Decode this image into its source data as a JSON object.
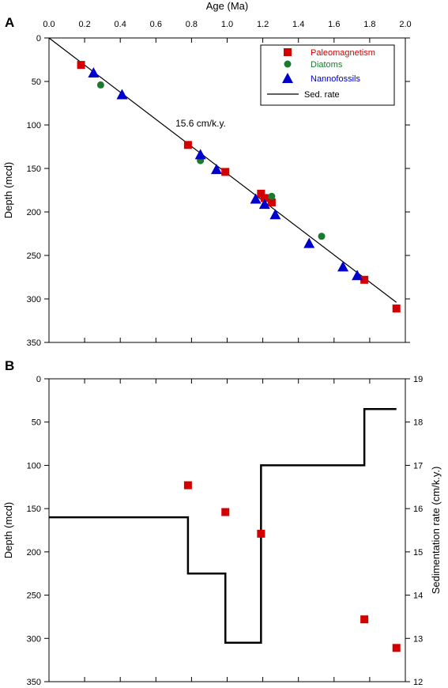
{
  "chart_data": [
    {
      "panel": "A",
      "type": "scatter",
      "title": "",
      "xlabel": "Age (Ma)",
      "ylabel": "Depth (mcd)",
      "xlim": [
        0.0,
        2.0
      ],
      "ylim": [
        350,
        0
      ],
      "x_axis_position": "top",
      "y_inverted": true,
      "xticks": [
        "0.0",
        "0.2",
        "0.4",
        "0.6",
        "0.8",
        "1.0",
        "1.2",
        "1.4",
        "1.6",
        "1.8",
        "2.0"
      ],
      "yticks": [
        "0",
        "50",
        "100",
        "150",
        "200",
        "250",
        "300",
        "350"
      ],
      "grid": false,
      "legend_position": "top-right",
      "legend": [
        "Paleomagnetism",
        "Diatoms",
        "Nannofossils",
        "Sed. rate"
      ],
      "series": [
        {
          "name": "Paleomagnetism",
          "marker": "square",
          "color": "#d40000",
          "points": [
            [
              0.18,
              31
            ],
            [
              0.78,
              123
            ],
            [
              0.99,
              154
            ],
            [
              1.19,
              179
            ],
            [
              1.21,
              184
            ],
            [
              1.25,
              189
            ],
            [
              1.77,
              278
            ],
            [
              1.95,
              311
            ]
          ]
        },
        {
          "name": "Diatoms",
          "marker": "circle",
          "color": "#1a7a2e",
          "points": [
            [
              0.29,
              54
            ],
            [
              0.85,
              141
            ],
            [
              1.25,
              182
            ],
            [
              1.53,
              228
            ]
          ]
        },
        {
          "name": "Nannofossils",
          "marker": "triangle",
          "color": "#0000cc",
          "points": [
            [
              0.25,
              40
            ],
            [
              0.41,
              65
            ],
            [
              0.85,
              134
            ],
            [
              0.94,
              151
            ],
            [
              1.16,
              185
            ],
            [
              1.21,
              191
            ],
            [
              1.27,
              203
            ],
            [
              1.46,
              236
            ],
            [
              1.65,
              263
            ],
            [
              1.73,
              273
            ]
          ]
        },
        {
          "name": "Sed. rate",
          "type": "line",
          "color": "#000000",
          "points": [
            [
              0.0,
              0
            ],
            [
              1.95,
              304
            ]
          ]
        }
      ],
      "annotations": [
        {
          "text": "15.6 cm/k.y.",
          "x": 0.71,
          "y": 98
        }
      ]
    },
    {
      "panel": "B",
      "type": "line",
      "title": "",
      "xlabel": "",
      "ylabel": "Depth (mcd)",
      "y2label": "Sedimentation rate (cm/k.y.)",
      "xlim": [
        0.0,
        2.0
      ],
      "ylim": [
        350,
        0
      ],
      "y2lim": [
        12,
        19
      ],
      "yticks": [
        "0",
        "50",
        "100",
        "150",
        "200",
        "250",
        "300",
        "350"
      ],
      "y2ticks": [
        "12",
        "13",
        "14",
        "15",
        "16",
        "17",
        "18",
        "19"
      ],
      "grid": false,
      "series": [
        {
          "name": "Paleomagnetism",
          "marker": "square",
          "color": "#d40000",
          "axis": "left",
          "points": [
            [
              0.78,
              123
            ],
            [
              0.99,
              154
            ],
            [
              1.19,
              179
            ],
            [
              1.77,
              278
            ],
            [
              1.95,
              311
            ]
          ]
        },
        {
          "name": "Sed. rate",
          "type": "step",
          "color": "#000000",
          "axis": "right",
          "points": [
            [
              0.0,
              15.8
            ],
            [
              0.78,
              15.8
            ],
            [
              0.78,
              14.5
            ],
            [
              0.99,
              14.5
            ],
            [
              0.99,
              12.9
            ],
            [
              1.19,
              12.9
            ],
            [
              1.19,
              17.0
            ],
            [
              1.77,
              17.0
            ],
            [
              1.77,
              18.3
            ],
            [
              1.95,
              18.3
            ]
          ]
        }
      ]
    }
  ],
  "panel_labels": [
    "A",
    "B"
  ],
  "colors": {
    "paleomag": "#d40000",
    "diatom": "#1a7a2e",
    "nanno": "#0000cc",
    "line": "#000000"
  }
}
